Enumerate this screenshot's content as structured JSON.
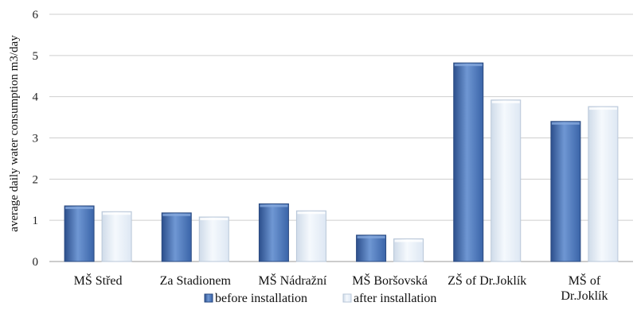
{
  "chart_data": {
    "type": "bar",
    "ylabel": "average daily water consumption  m3/day",
    "ylim": [
      0,
      6
    ],
    "yticks": [
      0,
      1,
      2,
      3,
      4,
      5,
      6
    ],
    "grid": true,
    "legend_position": "bottom",
    "categories": [
      [
        "MŠ Střed"
      ],
      [
        "Za Stadionem"
      ],
      [
        "MŠ Nádražní"
      ],
      [
        "MŠ Boršovská"
      ],
      [
        "ZŠ of Dr.Joklík"
      ],
      [
        "MŠ of",
        "Dr.Joklík"
      ]
    ],
    "series": [
      {
        "name": "before installation",
        "color": "#3a64a8",
        "values": [
          1.35,
          1.18,
          1.4,
          0.64,
          4.82,
          3.4
        ]
      },
      {
        "name": "after installation",
        "color": "#e3ecf6",
        "values": [
          1.21,
          1.08,
          1.23,
          0.55,
          3.92,
          3.76
        ]
      }
    ]
  }
}
